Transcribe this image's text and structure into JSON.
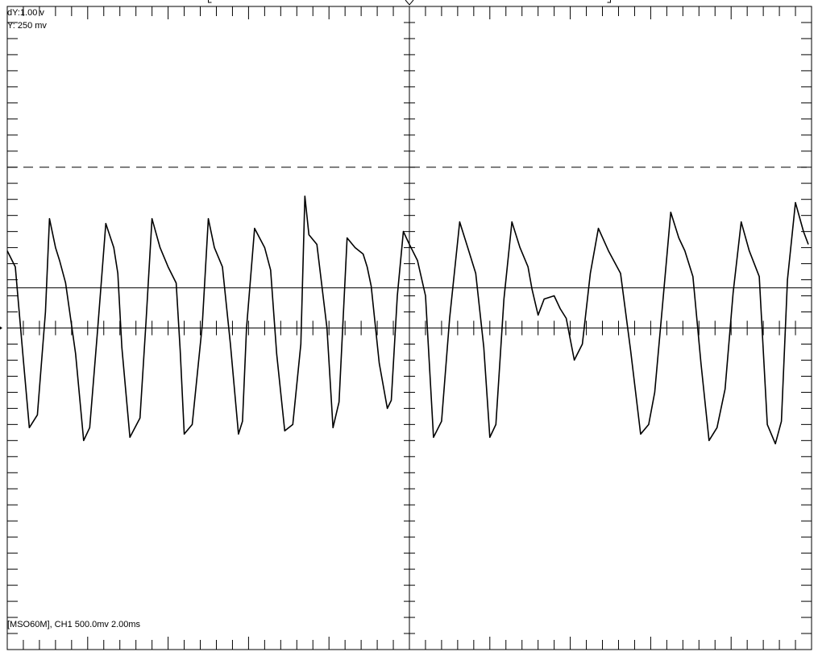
{
  "readouts": {
    "delta_y": "dY:1.00 v",
    "y_value": "Y:  250 mv"
  },
  "status_line": "[MSO60M], CH1 500.0mv 2.00ms",
  "colors": {
    "background": "#ffffff",
    "ink": "#000000"
  },
  "chart_data": {
    "type": "line",
    "title": "",
    "xlabel": "",
    "ylabel": "",
    "channel": "CH1",
    "volts_per_div": 0.5,
    "time_per_div_ms": 2.0,
    "xlim": [
      0,
      20
    ],
    "ylim": [
      -2,
      2
    ],
    "grid": true,
    "cursors": {
      "upper_volts": 1.0,
      "lower_volts": 0.0,
      "delta_volts": 1.0,
      "y_cursor_volts": 0.25
    },
    "series": [
      {
        "name": "CH1",
        "x": [
          0.0,
          0.2,
          0.4,
          0.55,
          0.75,
          0.95,
          1.05,
          1.2,
          1.3,
          1.45,
          1.7,
          1.9,
          2.05,
          2.25,
          2.45,
          2.65,
          2.75,
          2.85,
          3.05,
          3.3,
          3.45,
          3.6,
          3.8,
          4.0,
          4.2,
          4.3,
          4.4,
          4.6,
          4.85,
          5.0,
          5.15,
          5.35,
          5.55,
          5.75,
          5.85,
          5.95,
          6.15,
          6.4,
          6.55,
          6.7,
          6.9,
          7.1,
          7.3,
          7.4,
          7.5,
          7.7,
          7.95,
          8.1,
          8.25,
          8.45,
          8.65,
          8.85,
          8.95,
          9.05,
          9.25,
          9.45,
          9.55,
          9.7,
          9.85,
          10.0,
          10.2,
          10.4,
          10.6,
          10.8,
          11.0,
          11.25,
          11.45,
          11.65,
          11.85,
          12.0,
          12.15,
          12.35,
          12.55,
          12.75,
          12.95,
          13.05,
          13.2,
          13.35,
          13.6,
          13.75,
          13.9,
          14.1,
          14.3,
          14.5,
          14.7,
          14.95,
          15.25,
          15.5,
          15.75,
          15.95,
          16.1,
          16.3,
          16.5,
          16.7,
          16.85,
          17.05,
          17.25,
          17.45,
          17.65,
          17.85,
          18.05,
          18.25,
          18.45,
          18.7,
          18.9,
          19.1,
          19.25,
          19.4,
          19.6,
          19.8,
          19.92
        ],
        "values": [
          0.48,
          0.38,
          -0.2,
          -0.62,
          -0.54,
          0.1,
          0.68,
          0.5,
          0.42,
          0.28,
          -0.16,
          -0.7,
          -0.62,
          0.0,
          0.65,
          0.5,
          0.34,
          -0.12,
          -0.68,
          -0.56,
          0.04,
          0.68,
          0.5,
          0.38,
          0.28,
          -0.14,
          -0.66,
          -0.6,
          0.02,
          0.68,
          0.5,
          0.38,
          -0.1,
          -0.66,
          -0.58,
          0.0,
          0.62,
          0.5,
          0.36,
          -0.16,
          -0.64,
          -0.6,
          -0.1,
          0.82,
          0.58,
          0.52,
          0.0,
          -0.62,
          -0.46,
          0.56,
          0.5,
          0.46,
          0.38,
          0.26,
          -0.22,
          -0.5,
          -0.45,
          0.2,
          0.6,
          0.52,
          0.42,
          0.2,
          -0.68,
          -0.58,
          0.06,
          0.66,
          0.5,
          0.34,
          -0.12,
          -0.68,
          -0.6,
          0.18,
          0.66,
          0.5,
          0.38,
          0.24,
          0.08,
          0.18,
          0.2,
          0.12,
          0.06,
          -0.2,
          -0.1,
          0.34,
          0.62,
          0.48,
          0.34,
          -0.14,
          -0.66,
          -0.6,
          -0.4,
          0.16,
          0.72,
          0.56,
          0.48,
          0.32,
          -0.22,
          -0.7,
          -0.62,
          -0.38,
          0.22,
          0.66,
          0.48,
          0.32,
          -0.6,
          -0.72,
          -0.58,
          0.3,
          0.78,
          0.6,
          0.52
        ]
      }
    ]
  }
}
